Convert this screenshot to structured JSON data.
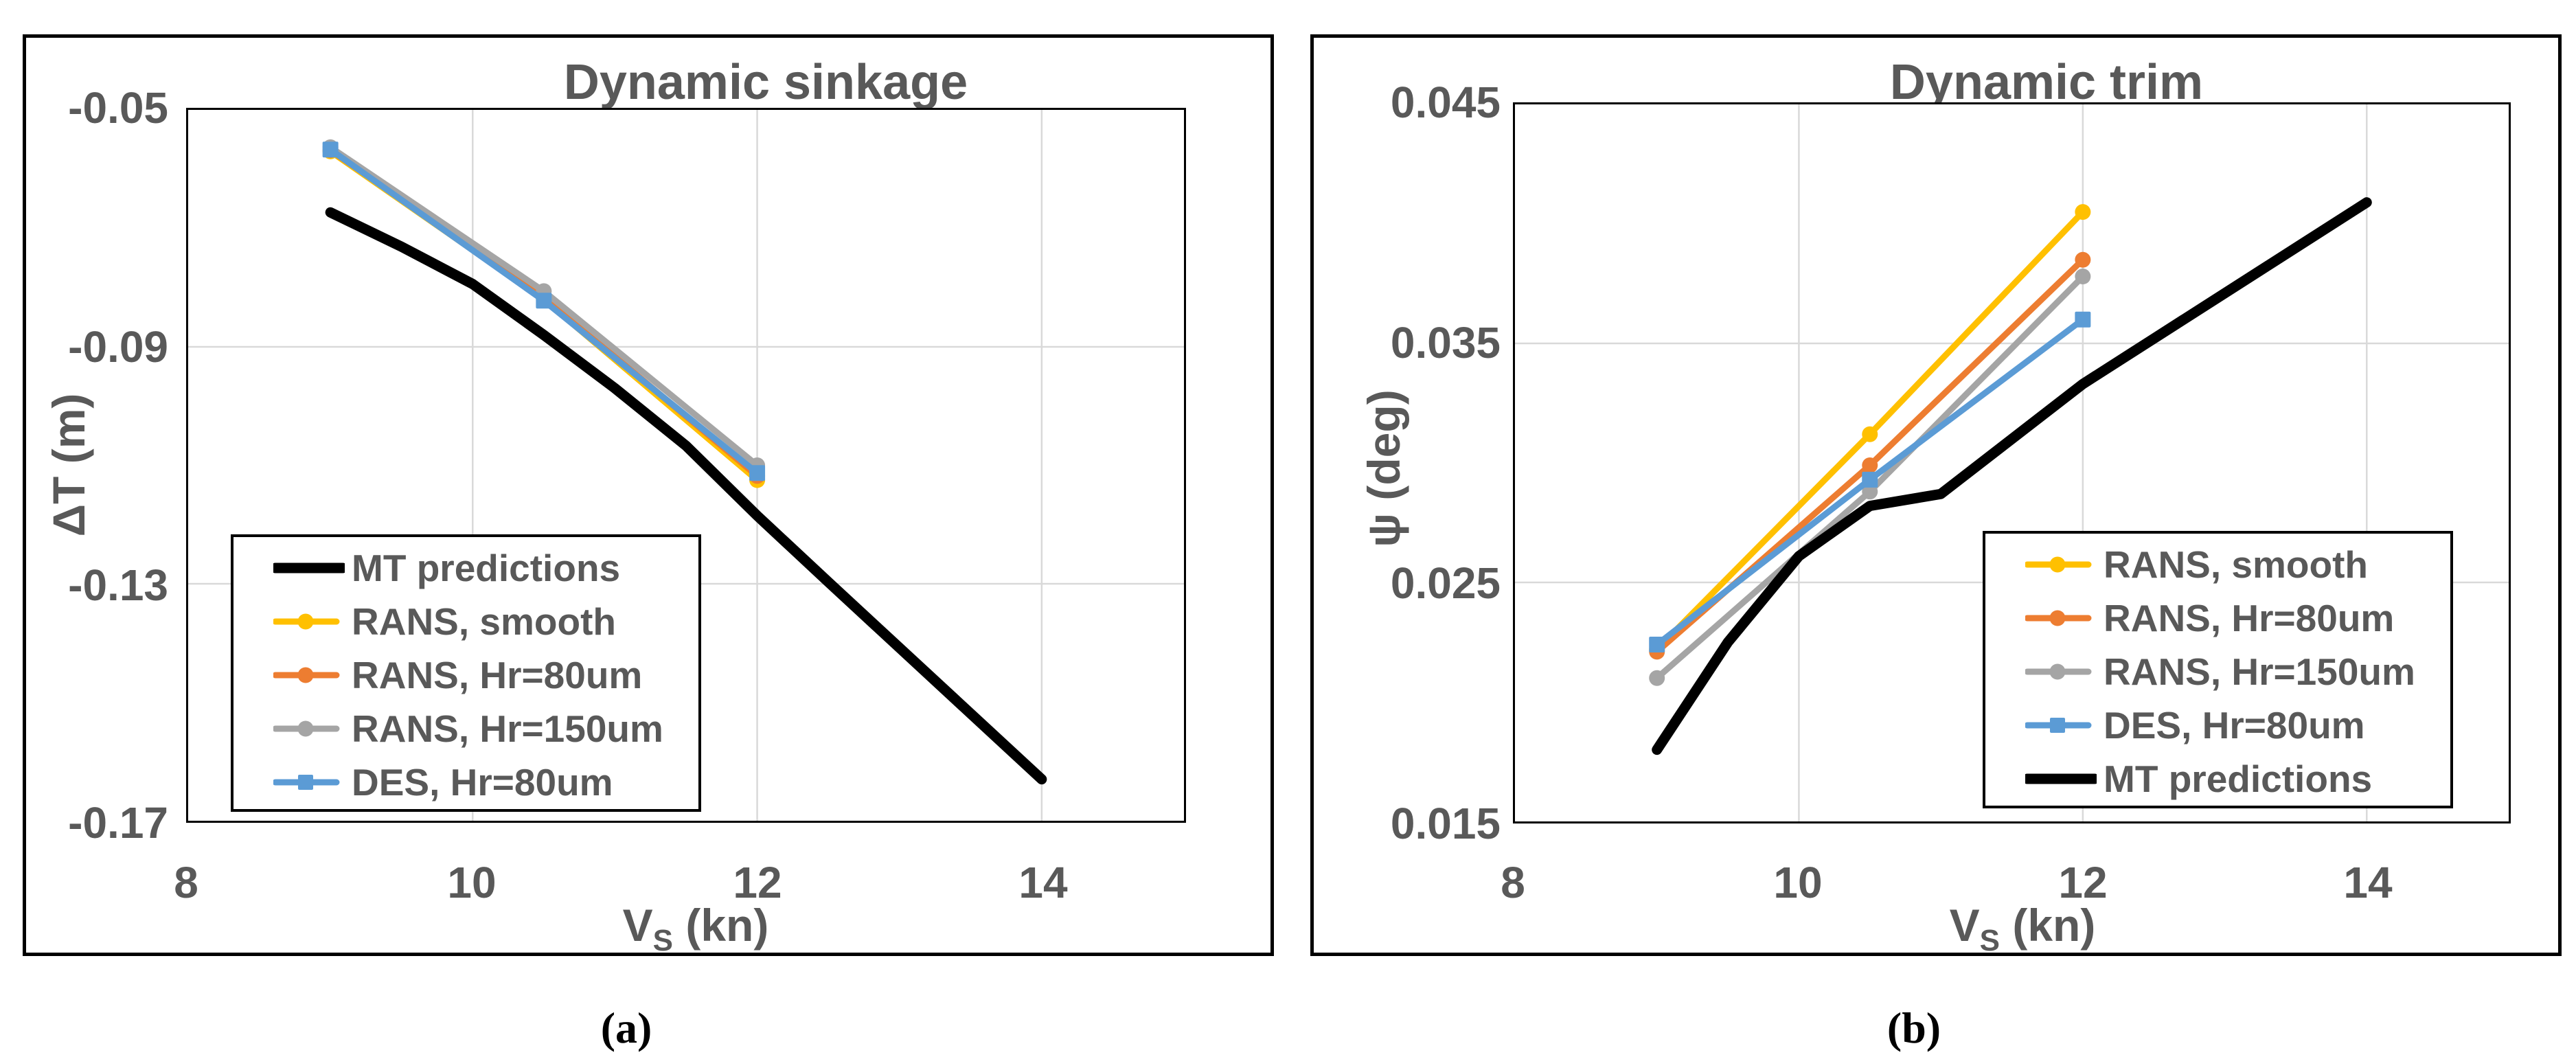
{
  "figure": {
    "background": "#ffffff",
    "text_color": "#595959",
    "grid_color": "#d9d9d9",
    "axis_color": "#000000"
  },
  "captions": {
    "a": "(a)",
    "b": "(b)"
  },
  "chart_data": [
    {
      "type": "line",
      "title": "Dynamic sinkage",
      "xlabel": {
        "base": "V",
        "sub": "S",
        "rest": " (kn)"
      },
      "ylabel": "ΔT (m)",
      "xlim": [
        8,
        15
      ],
      "ylim": [
        -0.17,
        -0.05
      ],
      "x_ticks": [
        {
          "value": 8,
          "label": "8"
        },
        {
          "value": 10,
          "label": "10"
        },
        {
          "value": 12,
          "label": "12"
        },
        {
          "value": 14,
          "label": "14"
        }
      ],
      "y_ticks": [
        {
          "value": -0.05,
          "label": "-0.05"
        },
        {
          "value": -0.09,
          "label": "-0.09"
        },
        {
          "value": -0.13,
          "label": "-0.13"
        },
        {
          "value": -0.17,
          "label": "-0.17"
        }
      ],
      "x_gridlines": [
        10,
        12,
        14
      ],
      "y_gridlines": [
        -0.09,
        -0.13
      ],
      "grid": true,
      "legend_position": "bottom-left",
      "series": [
        {
          "name": "MT predictions",
          "color": "#000000",
          "marker": "none",
          "line_width": 15,
          "x": [
            9,
            9.5,
            10,
            10.5,
            11,
            11.5,
            12,
            12.5,
            13,
            13.5,
            14
          ],
          "y": [
            -0.0673,
            -0.0731,
            -0.0794,
            -0.088,
            -0.097,
            -0.1067,
            -0.1185,
            -0.1297,
            -0.1408,
            -0.1519,
            -0.163
          ]
        },
        {
          "name": "RANS, smooth",
          "color": "#FFC000",
          "marker": "circle",
          "line_width": 9,
          "x": [
            9,
            10.5,
            12
          ],
          "y": [
            -0.057,
            -0.082,
            -0.1125
          ]
        },
        {
          "name": "RANS, Hr=80um",
          "color": "#ED7D31",
          "marker": "circle",
          "line_width": 9,
          "x": [
            9,
            10.5,
            12
          ],
          "y": [
            -0.0568,
            -0.0816,
            -0.1118
          ]
        },
        {
          "name": "RANS, Hr=150um",
          "color": "#A5A5A5",
          "marker": "circle",
          "line_width": 9,
          "x": [
            9,
            10.5,
            12
          ],
          "y": [
            -0.0563,
            -0.0806,
            -0.11
          ]
        },
        {
          "name": "DES, Hr=80um",
          "color": "#5B9BD5",
          "marker": "square",
          "line_width": 9,
          "x": [
            9,
            10.5,
            12
          ],
          "y": [
            -0.0567,
            -0.0822,
            -0.1113
          ]
        }
      ]
    },
    {
      "type": "line",
      "title": "Dynamic trim",
      "xlabel": {
        "base": "V",
        "sub": "S",
        "rest": " (kn)"
      },
      "ylabel": "ψ (deg)",
      "xlim": [
        8,
        15
      ],
      "ylim": [
        0.015,
        0.045
      ],
      "x_ticks": [
        {
          "value": 8,
          "label": "8"
        },
        {
          "value": 10,
          "label": "10"
        },
        {
          "value": 12,
          "label": "12"
        },
        {
          "value": 14,
          "label": "14"
        }
      ],
      "y_ticks": [
        {
          "value": 0.045,
          "label": "0.045"
        },
        {
          "value": 0.035,
          "label": "0.035"
        },
        {
          "value": 0.025,
          "label": "0.025"
        },
        {
          "value": 0.015,
          "label": "0.015"
        }
      ],
      "x_gridlines": [
        10,
        12,
        14
      ],
      "y_gridlines": [
        0.035,
        0.025
      ],
      "grid": true,
      "legend_position": "bottom-right",
      "series": [
        {
          "name": "RANS, smooth",
          "color": "#FFC000",
          "marker": "circle",
          "line_width": 9,
          "x": [
            9,
            10.5,
            12
          ],
          "y": [
            0.0222,
            0.0312,
            0.0405
          ]
        },
        {
          "name": "RANS, Hr=80um",
          "color": "#ED7D31",
          "marker": "circle",
          "line_width": 9,
          "x": [
            9,
            10.5,
            12
          ],
          "y": [
            0.0221,
            0.0299,
            0.0385
          ]
        },
        {
          "name": "RANS, Hr=150um",
          "color": "#A5A5A5",
          "marker": "circle",
          "line_width": 9,
          "x": [
            9,
            10.5,
            12
          ],
          "y": [
            0.021,
            0.0288,
            0.0378
          ]
        },
        {
          "name": "DES, Hr=80um",
          "color": "#5B9BD5",
          "marker": "square",
          "line_width": 9,
          "x": [
            9,
            10.5,
            12
          ],
          "y": [
            0.0224,
            0.0293,
            0.036
          ]
        },
        {
          "name": "MT predictions",
          "color": "#000000",
          "marker": "none",
          "line_width": 15,
          "x": [
            9,
            9.5,
            10,
            10.5,
            11,
            11.5,
            12,
            12.5,
            13,
            13.5,
            14
          ],
          "y": [
            0.018,
            0.0225,
            0.0261,
            0.0282,
            0.0287,
            0.031,
            0.0333,
            0.0352,
            0.0371,
            0.039,
            0.0409
          ]
        }
      ]
    }
  ]
}
